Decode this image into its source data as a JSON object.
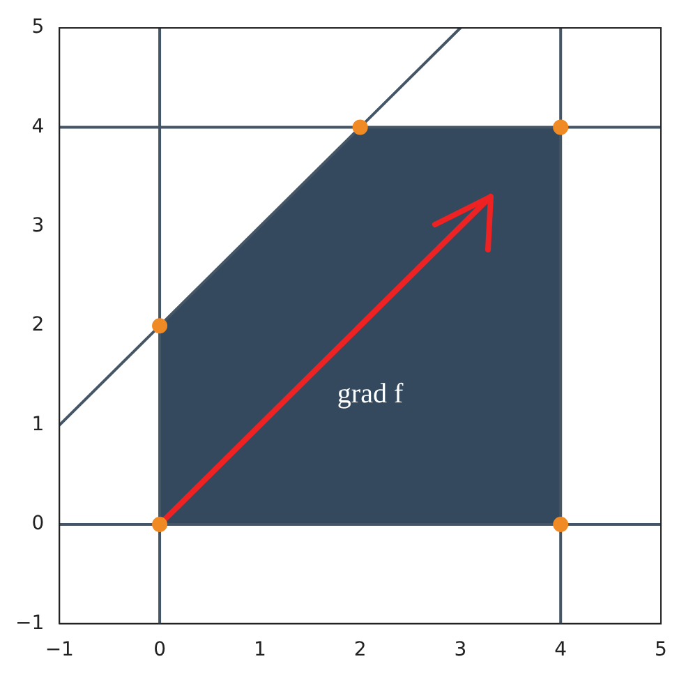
{
  "chart_data": {
    "type": "line",
    "xlim": [
      -1,
      5
    ],
    "ylim": [
      -1,
      5
    ],
    "xticks": [
      {
        "value": -1,
        "label": "−1"
      },
      0,
      1,
      2,
      3,
      4,
      5
    ],
    "yticks": [
      {
        "value": -1,
        "label": "−1"
      },
      0,
      1,
      2,
      3,
      4,
      5
    ],
    "series": [
      {
        "type": "area",
        "color": "#34495e",
        "marker": "none",
        "x": [
          0,
          0,
          2,
          4,
          4
        ],
        "values": [
          0,
          2,
          4,
          4,
          0
        ]
      },
      {
        "type": "line",
        "color": "#445566",
        "marker": "none",
        "x": [
          -1,
          3
        ],
        "values": [
          1,
          5
        ]
      },
      {
        "type": "line",
        "color": "#ee2222",
        "marker": "none",
        "x": [
          0,
          3.3
        ],
        "values": [
          0,
          3.3
        ]
      },
      {
        "type": "line",
        "color": "#445566",
        "marker": "none",
        "x": [
          0,
          0
        ],
        "values": [
          -1,
          5
        ]
      },
      {
        "type": "line",
        "color": "#445566",
        "marker": "none",
        "x": [
          4,
          4
        ],
        "values": [
          -1,
          5
        ]
      },
      {
        "type": "line",
        "color": "#445566",
        "marker": "none",
        "x": [
          -1,
          5
        ],
        "values": [
          0,
          0
        ]
      },
      {
        "type": "line",
        "color": "#445566",
        "marker": "none",
        "x": [
          -1,
          5
        ],
        "values": [
          4,
          4
        ]
      },
      {
        "type": "scatter",
        "color": "#f08a24",
        "x": [
          0,
          0,
          2,
          4,
          4
        ],
        "values": [
          0,
          2,
          4,
          4,
          0
        ]
      }
    ],
    "marker": "circle",
    "grid": false,
    "legend": false,
    "annotations": [
      "grad f"
    ]
  }
}
